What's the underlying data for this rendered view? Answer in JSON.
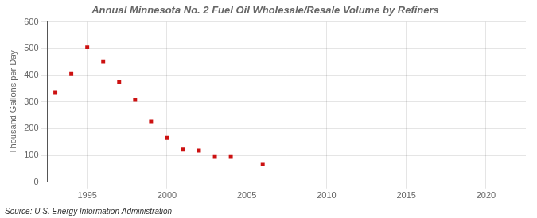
{
  "chart_data": {
    "type": "scatter",
    "title": "Annual Minnesota No. 2 Fuel Oil Wholesale/Resale Volume by Refiners",
    "ylabel": "Thousand Gallons per Day",
    "annotations": [
      "Source: U.S. Energy Information Administration"
    ],
    "x": [
      1993,
      1994,
      1995,
      1996,
      1997,
      1998,
      1999,
      2000,
      2001,
      2002,
      2003,
      2004,
      2006
    ],
    "values": [
      335,
      405,
      505,
      450,
      375,
      308,
      228,
      168,
      122,
      118,
      97,
      97,
      68
    ],
    "color": "#cc1111",
    "marker": "square",
    "xlim": [
      1992.5,
      2022.5
    ],
    "xticks": [
      1995,
      2000,
      2005,
      2010,
      2015,
      2020
    ],
    "ylim": [
      0,
      600
    ],
    "yticks": [
      0,
      100,
      200,
      300,
      400,
      500,
      600
    ],
    "grid": true
  }
}
